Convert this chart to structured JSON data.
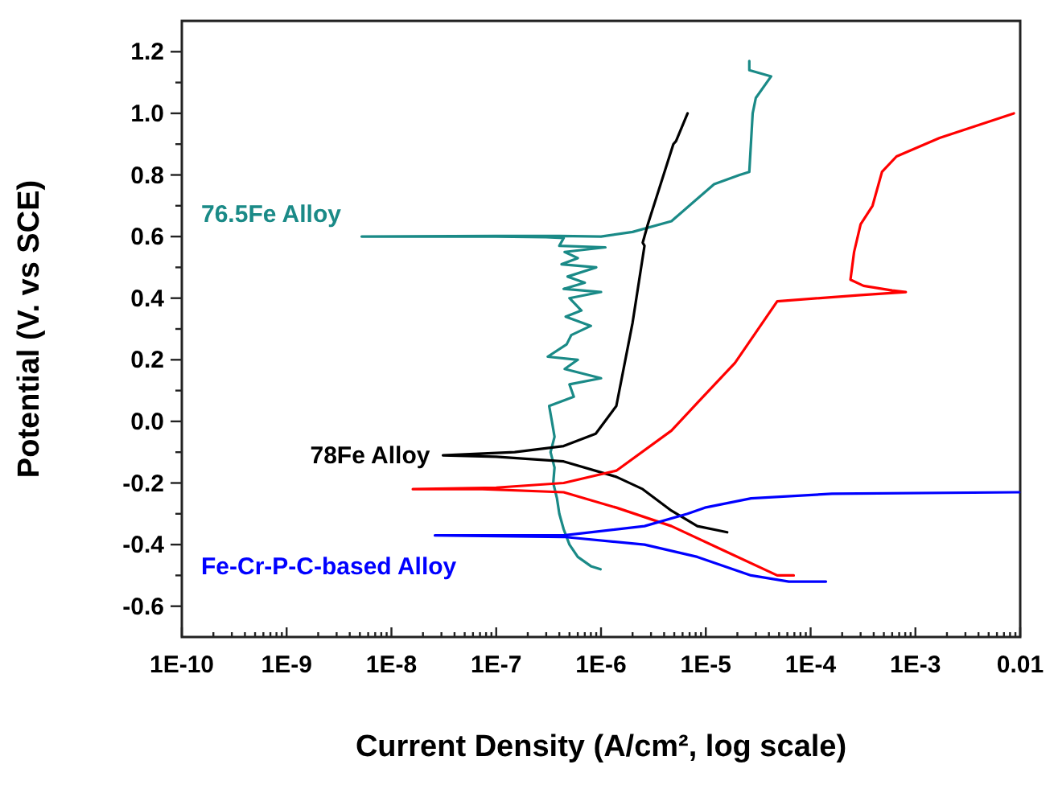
{
  "chart_data": {
    "type": "line",
    "xlabel": "Current Density (A/cm², log scale)",
    "ylabel": "Potential (V. vs SCE)",
    "log": "x",
    "xlim": [
      1e-10,
      0.01
    ],
    "ylim": [
      -0.7,
      1.3
    ],
    "xticks": [
      {
        "value": 1e-10,
        "label": "1E-10"
      },
      {
        "value": 2e-10,
        "label": null
      },
      {
        "value": 3e-10,
        "label": null
      },
      {
        "value": 4e-10,
        "label": null
      },
      {
        "value": 5e-10,
        "label": null
      },
      {
        "value": 6e-10,
        "label": null
      },
      {
        "value": 7e-10,
        "label": null
      },
      {
        "value": 8e-10,
        "label": null
      },
      {
        "value": 9e-10,
        "label": null
      },
      {
        "value": 1e-09,
        "label": "1E-9"
      },
      {
        "value": 2e-09,
        "label": null
      },
      {
        "value": 3e-09,
        "label": null
      },
      {
        "value": 4e-09,
        "label": null
      },
      {
        "value": 5e-09,
        "label": null
      },
      {
        "value": 6e-09,
        "label": null
      },
      {
        "value": 7e-09,
        "label": null
      },
      {
        "value": 8e-09,
        "label": null
      },
      {
        "value": 9e-09,
        "label": null
      },
      {
        "value": 1e-08,
        "label": "1E-8"
      },
      {
        "value": 2e-08,
        "label": null
      },
      {
        "value": 3e-08,
        "label": null
      },
      {
        "value": 4e-08,
        "label": null
      },
      {
        "value": 5e-08,
        "label": null
      },
      {
        "value": 6e-08,
        "label": null
      },
      {
        "value": 7e-08,
        "label": null
      },
      {
        "value": 8e-08,
        "label": null
      },
      {
        "value": 9e-08,
        "label": null
      },
      {
        "value": 1e-07,
        "label": "1E-7"
      },
      {
        "value": 2e-07,
        "label": null
      },
      {
        "value": 3e-07,
        "label": null
      },
      {
        "value": 4e-07,
        "label": null
      },
      {
        "value": 5e-07,
        "label": null
      },
      {
        "value": 6e-07,
        "label": null
      },
      {
        "value": 7e-07,
        "label": null
      },
      {
        "value": 8e-07,
        "label": null
      },
      {
        "value": 9e-07,
        "label": null
      },
      {
        "value": 1e-06,
        "label": "1E-6"
      },
      {
        "value": 2e-06,
        "label": null
      },
      {
        "value": 3e-06,
        "label": null
      },
      {
        "value": 4e-06,
        "label": null
      },
      {
        "value": 5e-06,
        "label": null
      },
      {
        "value": 6e-06,
        "label": null
      },
      {
        "value": 7e-06,
        "label": null
      },
      {
        "value": 8e-06,
        "label": null
      },
      {
        "value": 9e-06,
        "label": null
      },
      {
        "value": 1e-05,
        "label": "1E-5"
      },
      {
        "value": 2e-05,
        "label": null
      },
      {
        "value": 3e-05,
        "label": null
      },
      {
        "value": 4e-05,
        "label": null
      },
      {
        "value": 5e-05,
        "label": null
      },
      {
        "value": 6e-05,
        "label": null
      },
      {
        "value": 7e-05,
        "label": null
      },
      {
        "value": 8e-05,
        "label": null
      },
      {
        "value": 9e-05,
        "label": null
      },
      {
        "value": 0.0001,
        "label": "1E-4"
      },
      {
        "value": 0.0002,
        "label": null
      },
      {
        "value": 0.0003,
        "label": null
      },
      {
        "value": 0.0004,
        "label": null
      },
      {
        "value": 0.0005,
        "label": null
      },
      {
        "value": 0.0006,
        "label": null
      },
      {
        "value": 0.0007,
        "label": null
      },
      {
        "value": 0.0008,
        "label": null
      },
      {
        "value": 0.0009,
        "label": null
      },
      {
        "value": 0.001,
        "label": "1E-3"
      },
      {
        "value": 0.002,
        "label": null
      },
      {
        "value": 0.003,
        "label": null
      },
      {
        "value": 0.004,
        "label": null
      },
      {
        "value": 0.005,
        "label": null
      },
      {
        "value": 0.006,
        "label": null
      },
      {
        "value": 0.007,
        "label": null
      },
      {
        "value": 0.008,
        "label": null
      },
      {
        "value": 0.009,
        "label": null
      },
      0.01
    ],
    "yticks": [
      -0.6,
      {
        "value": -0.5,
        "label": null
      },
      -0.4,
      {
        "value": -0.3,
        "label": null
      },
      -0.2,
      {
        "value": -0.1,
        "label": null
      },
      {
        "value": 0,
        "label": "0.0"
      },
      {
        "value": 0.1,
        "label": null
      },
      0.2,
      {
        "value": 0.3,
        "label": null
      },
      0.4,
      {
        "value": 0.5,
        "label": null
      },
      0.6,
      {
        "value": 0.7,
        "label": null
      },
      0.8,
      {
        "value": 0.9,
        "label": null
      },
      {
        "value": 1.0,
        "label": "1.0"
      },
      {
        "value": 1.1,
        "label": null
      },
      1.2
    ],
    "series": [
      {
        "name": "76.5Fe Alloy",
        "color": "#1a8a87",
        "x": [
          9.9e-07,
          8e-07,
          6e-07,
          5e-07,
          4.4e-07,
          4e-07,
          3.8e-07,
          3.5e-07,
          3.6e-07,
          3.3e-07,
          3.6e-07,
          3.4e-07,
          3.2e-07,
          5.5e-07,
          5e-07,
          1e-06,
          4.5e-07,
          6e-07,
          3.1e-07,
          4.7e-07,
          5.2e-07,
          8e-07,
          4.6e-07,
          6.5e-07,
          5e-07,
          1e-06,
          4.4e-07,
          7e-07,
          4.8e-07,
          9e-07,
          4.2e-07,
          6e-07,
          4.5e-07,
          1.1e-06,
          4e-07,
          4.4e-07,
          3e-07,
          1e-07,
          5.2e-09,
          1e-07,
          4e-07,
          1e-06,
          2e-06,
          4.7e-06,
          1.2e-05,
          2.1e-05,
          2.6e-05,
          2.8e-05,
          3e-05,
          4.2e-05,
          2.6e-05,
          2.6e-05
        ],
        "values": [
          -0.48,
          -0.47,
          -0.44,
          -0.4,
          -0.35,
          -0.3,
          -0.25,
          -0.2,
          -0.15,
          -0.1,
          -0.05,
          0.0,
          0.05,
          0.08,
          0.12,
          0.14,
          0.17,
          0.2,
          0.21,
          0.25,
          0.28,
          0.31,
          0.34,
          0.36,
          0.4,
          0.42,
          0.43,
          0.45,
          0.47,
          0.5,
          0.51,
          0.53,
          0.55,
          0.565,
          0.57,
          0.595,
          0.598,
          0.6,
          0.6,
          0.602,
          0.602,
          0.6,
          0.615,
          0.65,
          0.77,
          0.8,
          0.81,
          1.0,
          1.05,
          1.12,
          1.14,
          1.17
        ]
      },
      {
        "name": "78Fe Alloy",
        "color": "#000000",
        "x": [
          1.6e-05,
          8.3e-06,
          4.7e-06,
          2.5e-06,
          1.4e-06,
          4.4e-07,
          1e-07,
          3.1e-08,
          1.5e-07,
          4.4e-07,
          8.9e-07,
          1.4e-06,
          2e-06,
          2.6e-06,
          2.5e-06,
          2.8e-06,
          4.9e-06,
          5.2e-06,
          6.7e-06
        ],
        "values": [
          -0.36,
          -0.34,
          -0.29,
          -0.22,
          -0.18,
          -0.13,
          -0.115,
          -0.11,
          -0.1,
          -0.08,
          -0.04,
          0.05,
          0.32,
          0.57,
          0.58,
          0.64,
          0.9,
          0.91,
          1.0
        ]
      },
      {
        "color": "#ff0000",
        "x": [
          6.9e-05,
          4.8e-05,
          1.5e-05,
          4.7e-06,
          1.4e-06,
          4.4e-07,
          7.4e-08,
          1.6e-08,
          1e-07,
          4.4e-07,
          1.4e-06,
          4.7e-06,
          8.3e-06,
          1.9e-05,
          4.8e-05,
          0.0003,
          0.00081,
          0.0006,
          0.00032,
          0.00024,
          0.00026,
          0.0003,
          0.00039,
          0.00048,
          0.00066,
          0.0017,
          0.0087
        ],
        "values": [
          -0.5,
          -0.5,
          -0.42,
          -0.34,
          -0.28,
          -0.23,
          -0.22,
          -0.22,
          -0.215,
          -0.2,
          -0.16,
          -0.03,
          0.06,
          0.19,
          0.39,
          0.41,
          0.42,
          0.425,
          0.44,
          0.46,
          0.55,
          0.64,
          0.7,
          0.81,
          0.86,
          0.92,
          1.0
        ]
      },
      {
        "name": "Fe-Cr-P-C-based Alloy",
        "color": "#0000ff",
        "x": [
          0.00014,
          6.2e-05,
          2.7e-05,
          8.3e-06,
          2.6e-06,
          4.4e-07,
          2.6e-08,
          4.4e-07,
          2.6e-06,
          6.7e-06,
          9.8e-06,
          2.7e-05,
          0.00016,
          0.0098
        ],
        "values": [
          -0.52,
          -0.52,
          -0.5,
          -0.44,
          -0.4,
          -0.375,
          -0.37,
          -0.37,
          -0.34,
          -0.3,
          -0.28,
          -0.25,
          -0.235,
          -0.23
        ]
      }
    ]
  }
}
